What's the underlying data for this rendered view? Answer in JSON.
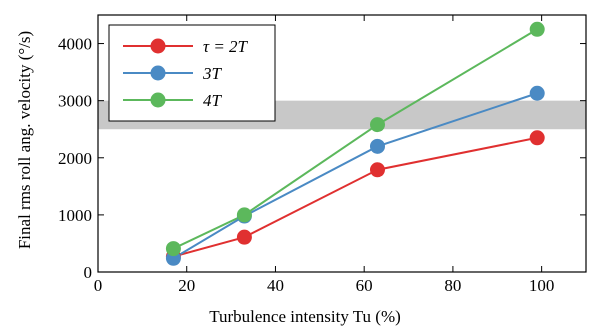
{
  "chart_data": {
    "type": "line",
    "xlabel": "Turbulence intensity Tu (%)",
    "ylabel": "Final rms roll ang. velocity (°/s)",
    "xlim": [
      0,
      110
    ],
    "ylim": [
      0,
      4500
    ],
    "xticks": [
      0,
      20,
      40,
      60,
      80,
      100
    ],
    "yticks": [
      0,
      1000,
      2000,
      3000,
      4000
    ],
    "grid": false,
    "legend_position": "top-left",
    "band": {
      "y_min": 2500,
      "y_max": 3000,
      "color": "#c8c8c8"
    },
    "x": [
      17,
      33,
      63,
      99
    ],
    "series": [
      {
        "name": "τ = 2T",
        "color": "#e03030",
        "values": [
          270,
          610,
          1790,
          2350
        ]
      },
      {
        "name": "3T",
        "color": "#4a8ac4",
        "values": [
          240,
          980,
          2200,
          3130
        ]
      },
      {
        "name": "4T",
        "color": "#5cb85c",
        "values": [
          410,
          1000,
          2580,
          4250
        ]
      }
    ]
  }
}
